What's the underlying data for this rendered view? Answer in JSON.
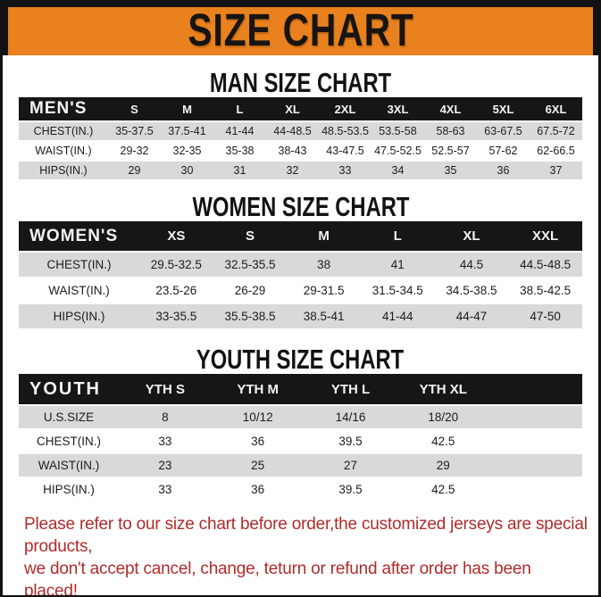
{
  "page": {
    "title": "SIZE CHART",
    "footer_line1": "Please refer to our size chart before order,the customized jerseys are special products,",
    "footer_line2": "we don't accept cancel, change, teturn or refund after order has been placed!"
  },
  "colors": {
    "banner_orange": "#E8811E",
    "header_black": "#161616",
    "row_gray": "#D9D9D9",
    "footer_red": "#B02B2B"
  },
  "tables": [
    {
      "title": "MAN SIZE CHART",
      "header_label": "MEN'S",
      "columns": [
        "S",
        "M",
        "L",
        "XL",
        "2XL",
        "3XL",
        "4XL",
        "5XL",
        "6XL"
      ],
      "rows": [
        {
          "label": "CHEST(IN.)",
          "values": [
            "35-37.5",
            "37.5-41",
            "41-44",
            "44-48.5",
            "48.5-53.5",
            "53.5-58",
            "58-63",
            "63-67.5",
            "67.5-72"
          ]
        },
        {
          "label": "WAIST(IN.)",
          "values": [
            "29-32",
            "32-35",
            "35-38",
            "38-43",
            "43-47.5",
            "47.5-52.5",
            "52.5-57",
            "57-62",
            "62-66.5"
          ]
        },
        {
          "label": "HIPS(IN.)",
          "values": [
            "29",
            "30",
            "31",
            "32",
            "33",
            "34",
            "35",
            "36",
            "37"
          ]
        }
      ]
    },
    {
      "title": "WOMEN SIZE CHART",
      "header_label": "WOMEN'S",
      "columns": [
        "XS",
        "S",
        "M",
        "L",
        "XL",
        "XXL"
      ],
      "rows": [
        {
          "label": "CHEST(IN.)",
          "values": [
            "29.5-32.5",
            "32.5-35.5",
            "38",
            "41",
            "44.5",
            "44.5-48.5"
          ]
        },
        {
          "label": "WAIST(IN.)",
          "values": [
            "23.5-26",
            "26-29",
            "29-31.5",
            "31.5-34.5",
            "34.5-38.5",
            "38.5-42.5"
          ]
        },
        {
          "label": "HIPS(IN.)",
          "values": [
            "33-35.5",
            "35.5-38.5",
            "38.5-41",
            "41-44",
            "44-47",
            "47-50"
          ]
        }
      ]
    },
    {
      "title": "YOUTH SIZE CHART",
      "header_label": "YOUTH",
      "columns": [
        "YTH S",
        "YTH M",
        "YTH L",
        "YTH XL"
      ],
      "rows": [
        {
          "label": "U.S.SIZE",
          "values": [
            "8",
            "10/12",
            "14/16",
            "18/20"
          ]
        },
        {
          "label": "CHEST(IN.)",
          "values": [
            "33",
            "36",
            "39.5",
            "42.5"
          ]
        },
        {
          "label": "WAIST(IN.)",
          "values": [
            "23",
            "25",
            "27",
            "29"
          ]
        },
        {
          "label": "HIPS(IN.)",
          "values": [
            "33",
            "36",
            "39.5",
            "42.5"
          ]
        }
      ]
    }
  ]
}
